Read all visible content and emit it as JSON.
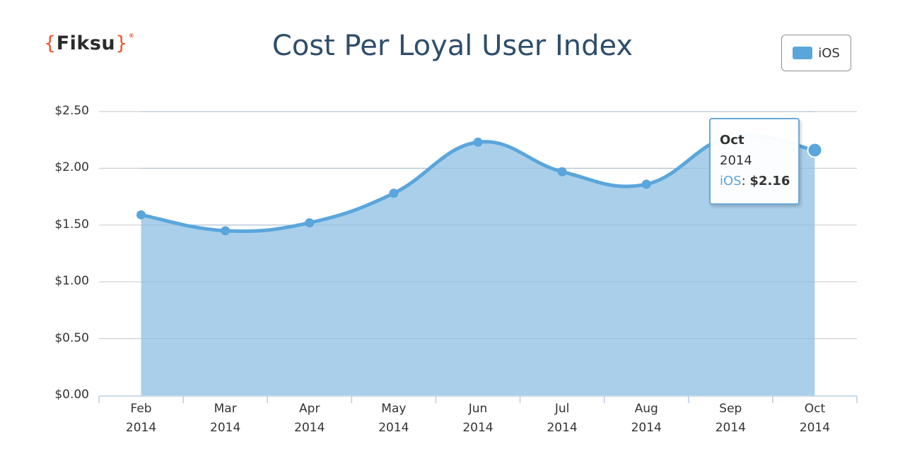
{
  "logo": {
    "open": "{",
    "text": "Fiksu",
    "close": "}",
    "mark": "®"
  },
  "chart_data": {
    "type": "area",
    "title": "Cost Per Loyal User Index",
    "xlabel": "",
    "ylabel": "",
    "ylim": [
      0,
      2.5
    ],
    "yticks": [
      "$0.00",
      "$0.50",
      "$1.00",
      "$1.50",
      "$2.00",
      "$2.50"
    ],
    "ytick_values": [
      0,
      0.5,
      1.0,
      1.5,
      2.0,
      2.5
    ],
    "categories": [
      {
        "month": "Feb",
        "year": "2014"
      },
      {
        "month": "Mar",
        "year": "2014"
      },
      {
        "month": "Apr",
        "year": "2014"
      },
      {
        "month": "May",
        "year": "2014"
      },
      {
        "month": "Jun",
        "year": "2014"
      },
      {
        "month": "Jul",
        "year": "2014"
      },
      {
        "month": "Aug",
        "year": "2014"
      },
      {
        "month": "Sep",
        "year": "2014"
      },
      {
        "month": "Oct",
        "year": "2014"
      }
    ],
    "series": [
      {
        "name": "iOS",
        "values": [
          1.59,
          1.45,
          1.52,
          1.78,
          2.23,
          1.97,
          1.86,
          2.28,
          2.16
        ]
      }
    ],
    "legend": {
      "placement": "top-right",
      "entries": [
        "iOS"
      ]
    },
    "grid": true,
    "tooltip": {
      "month": "Oct",
      "year": "2014",
      "series": "iOS",
      "value": "$2.16"
    }
  },
  "colors": {
    "line": "#5aa6dc",
    "fill": "#a9cfea",
    "grid": "#cfcfcf",
    "axis": "#b8cde3",
    "title": "#2f4e6b",
    "logo_brace": "#f0562b"
  }
}
